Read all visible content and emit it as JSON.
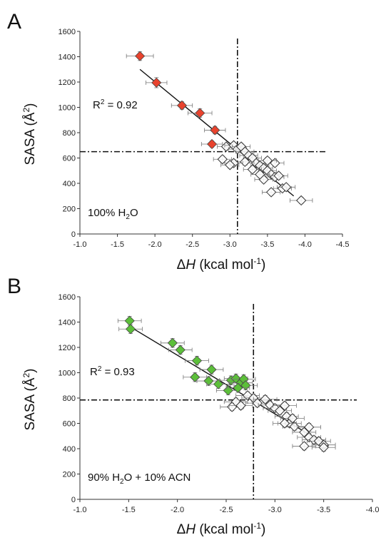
{
  "chart_data": [
    {
      "type": "scatter",
      "panel": "A",
      "xlabel_delta": "Δ",
      "xlabel_var": "H",
      "xlabel_unit_pre": " (kcal mol",
      "xlabel_sup": "-1",
      "xlabel_unit_post": ")",
      "ylabel_pre": "SASA (Å",
      "ylabel_sup": "2",
      "ylabel_post": ")",
      "xlim": [
        -1.0,
        -4.5
      ],
      "ylim": [
        0,
        1600
      ],
      "xticks": [
        "-1.0",
        "-1.5",
        "-2.0",
        "-2.5",
        "-3.0",
        "-3.5",
        "-4.0",
        "-4.5"
      ],
      "yticks": [
        "0",
        "200",
        "400",
        "600",
        "800",
        "1000",
        "1200",
        "1400",
        "1600"
      ],
      "r2_label": "R",
      "r2_sup": "2",
      "r2_value": " = 0.92",
      "condition_pre": "100% H",
      "condition_sub": "2",
      "condition_post": "O",
      "threshold_x": -3.1,
      "threshold_y": 650,
      "fit_line": [
        [
          -1.8,
          1300
        ],
        [
          -3.85,
          300
        ]
      ],
      "highlight_color": "#e8432e",
      "series": [
        {
          "group": "highlighted",
          "points": [
            {
              "x": -1.8,
              "y": 1405,
              "xerr": 0.18,
              "yerr": 35
            },
            {
              "x": -2.02,
              "y": 1195,
              "xerr": 0.14,
              "yerr": 40
            },
            {
              "x": -2.36,
              "y": 1015,
              "xerr": 0.14,
              "yerr": 30
            },
            {
              "x": -2.6,
              "y": 955,
              "xerr": 0.16,
              "yerr": 35
            },
            {
              "x": -2.8,
              "y": 820,
              "xerr": 0.14,
              "yerr": 30
            },
            {
              "x": -2.76,
              "y": 710,
              "xerr": 0.14,
              "yerr": 25
            }
          ]
        },
        {
          "group": "open",
          "points": [
            {
              "x": -2.95,
              "y": 690,
              "xerr": 0.12,
              "yerr": 25
            },
            {
              "x": -3.05,
              "y": 700,
              "xerr": 0.12,
              "yerr": 25
            },
            {
              "x": -3.1,
              "y": 670,
              "xerr": 0.12,
              "yerr": 25
            },
            {
              "x": -3.15,
              "y": 690,
              "xerr": 0.12,
              "yerr": 25
            },
            {
              "x": -3.2,
              "y": 650,
              "xerr": 0.12,
              "yerr": 25
            },
            {
              "x": -3.25,
              "y": 620,
              "xerr": 0.12,
              "yerr": 25
            },
            {
              "x": -3.3,
              "y": 600,
              "xerr": 0.12,
              "yerr": 25
            },
            {
              "x": -3.35,
              "y": 560,
              "xerr": 0.12,
              "yerr": 25
            },
            {
              "x": -3.4,
              "y": 540,
              "xerr": 0.12,
              "yerr": 25
            },
            {
              "x": -3.45,
              "y": 520,
              "xerr": 0.12,
              "yerr": 25
            },
            {
              "x": -3.5,
              "y": 500,
              "xerr": 0.12,
              "yerr": 25
            },
            {
              "x": -3.55,
              "y": 470,
              "xerr": 0.12,
              "yerr": 25
            },
            {
              "x": -3.6,
              "y": 450,
              "xerr": 0.12,
              "yerr": 25
            },
            {
              "x": -3.65,
              "y": 460,
              "xerr": 0.12,
              "yerr": 25
            },
            {
              "x": -3.2,
              "y": 570,
              "xerr": 0.12,
              "yerr": 25
            },
            {
              "x": -3.05,
              "y": 560,
              "xerr": 0.12,
              "yerr": 25
            },
            {
              "x": -2.9,
              "y": 590,
              "xerr": 0.12,
              "yerr": 25
            },
            {
              "x": -3.0,
              "y": 545,
              "xerr": 0.12,
              "yerr": 25
            },
            {
              "x": -3.3,
              "y": 510,
              "xerr": 0.12,
              "yerr": 25
            },
            {
              "x": -3.45,
              "y": 430,
              "xerr": 0.12,
              "yerr": 25
            },
            {
              "x": -3.55,
              "y": 330,
              "xerr": 0.12,
              "yerr": 25
            },
            {
              "x": -3.7,
              "y": 360,
              "xerr": 0.12,
              "yerr": 25
            },
            {
              "x": -3.75,
              "y": 370,
              "xerr": 0.12,
              "yerr": 25
            },
            {
              "x": -3.95,
              "y": 265,
              "xerr": 0.15,
              "yerr": 25
            },
            {
              "x": -3.4,
              "y": 470,
              "xerr": 0.12,
              "yerr": 25
            },
            {
              "x": -3.6,
              "y": 560,
              "xerr": 0.12,
              "yerr": 25
            },
            {
              "x": -3.5,
              "y": 580,
              "xerr": 0.12,
              "yerr": 25
            }
          ]
        }
      ]
    },
    {
      "type": "scatter",
      "panel": "B",
      "xlabel_delta": "Δ",
      "xlabel_var": "H",
      "xlabel_unit_pre": " (kcal mol",
      "xlabel_sup": "-1",
      "xlabel_unit_post": ")",
      "ylabel_pre": "SASA (Å",
      "ylabel_sup": "2",
      "ylabel_post": ")",
      "xlim": [
        -1.0,
        -4.0
      ],
      "ylim": [
        0,
        1600
      ],
      "xticks": [
        "-1.0",
        "-1.5",
        "-2.0",
        "-2.5",
        "-3.0",
        "-3.5",
        "-4.0"
      ],
      "yticks": [
        "0",
        "200",
        "400",
        "600",
        "800",
        "1000",
        "1200",
        "1400",
        "1600"
      ],
      "r2_label": "R",
      "r2_sup": "2",
      "r2_value": " = 0.93",
      "condition_pre": "90% H",
      "condition_sub": "2",
      "condition_post": "O + 10% ACN",
      "threshold_x": -2.78,
      "threshold_y": 785,
      "fit_line": [
        [
          -1.5,
          1370
        ],
        [
          -3.55,
          420
        ]
      ],
      "highlight_color": "#5cbf3a",
      "series": [
        {
          "group": "highlighted",
          "points": [
            {
              "x": -1.51,
              "y": 1410,
              "xerr": 0.12,
              "yerr": 35
            },
            {
              "x": -1.52,
              "y": 1345,
              "xerr": 0.12,
              "yerr": 35
            },
            {
              "x": -1.95,
              "y": 1235,
              "xerr": 0.12,
              "yerr": 35
            },
            {
              "x": -2.03,
              "y": 1180,
              "xerr": 0.12,
              "yerr": 35
            },
            {
              "x": -2.2,
              "y": 1095,
              "xerr": 0.12,
              "yerr": 35
            },
            {
              "x": -2.35,
              "y": 1025,
              "xerr": 0.12,
              "yerr": 35
            },
            {
              "x": -2.18,
              "y": 965,
              "xerr": 0.12,
              "yerr": 35
            },
            {
              "x": -2.32,
              "y": 935,
              "xerr": 0.12,
              "yerr": 35
            },
            {
              "x": -2.42,
              "y": 910,
              "xerr": 0.12,
              "yerr": 35
            },
            {
              "x": -2.52,
              "y": 860,
              "xerr": 0.12,
              "yerr": 35
            },
            {
              "x": -2.55,
              "y": 940,
              "xerr": 0.12,
              "yerr": 35
            },
            {
              "x": -2.6,
              "y": 955,
              "xerr": 0.12,
              "yerr": 35
            },
            {
              "x": -2.65,
              "y": 920,
              "xerr": 0.12,
              "yerr": 35
            },
            {
              "x": -2.68,
              "y": 950,
              "xerr": 0.12,
              "yerr": 35
            },
            {
              "x": -2.7,
              "y": 900,
              "xerr": 0.12,
              "yerr": 35
            },
            {
              "x": -2.62,
              "y": 880,
              "xerr": 0.12,
              "yerr": 35
            }
          ]
        },
        {
          "group": "open",
          "points": [
            {
              "x": -2.72,
              "y": 820,
              "xerr": 0.12,
              "yerr": 30
            },
            {
              "x": -2.78,
              "y": 800,
              "xerr": 0.12,
              "yerr": 30
            },
            {
              "x": -2.6,
              "y": 770,
              "xerr": 0.12,
              "yerr": 30
            },
            {
              "x": -2.56,
              "y": 730,
              "xerr": 0.12,
              "yerr": 30
            },
            {
              "x": -2.65,
              "y": 740,
              "xerr": 0.12,
              "yerr": 30
            },
            {
              "x": -2.82,
              "y": 760,
              "xerr": 0.12,
              "yerr": 30
            },
            {
              "x": -2.9,
              "y": 790,
              "xerr": 0.12,
              "yerr": 30
            },
            {
              "x": -2.95,
              "y": 745,
              "xerr": 0.12,
              "yerr": 30
            },
            {
              "x": -3.0,
              "y": 720,
              "xerr": 0.12,
              "yerr": 30
            },
            {
              "x": -3.05,
              "y": 700,
              "xerr": 0.12,
              "yerr": 30
            },
            {
              "x": -3.1,
              "y": 740,
              "xerr": 0.12,
              "yerr": 30
            },
            {
              "x": -3.12,
              "y": 655,
              "xerr": 0.12,
              "yerr": 30
            },
            {
              "x": -3.15,
              "y": 600,
              "xerr": 0.12,
              "yerr": 30
            },
            {
              "x": -3.2,
              "y": 575,
              "xerr": 0.12,
              "yerr": 30
            },
            {
              "x": -3.18,
              "y": 640,
              "xerr": 0.12,
              "yerr": 30
            },
            {
              "x": -3.3,
              "y": 530,
              "xerr": 0.12,
              "yerr": 30
            },
            {
              "x": -3.35,
              "y": 490,
              "xerr": 0.12,
              "yerr": 30
            },
            {
              "x": -3.4,
              "y": 470,
              "xerr": 0.12,
              "yerr": 30
            },
            {
              "x": -3.45,
              "y": 460,
              "xerr": 0.12,
              "yerr": 30
            },
            {
              "x": -3.5,
              "y": 430,
              "xerr": 0.12,
              "yerr": 30
            },
            {
              "x": -3.5,
              "y": 410,
              "xerr": 0.12,
              "yerr": 30
            },
            {
              "x": -3.3,
              "y": 420,
              "xerr": 0.12,
              "yerr": 30
            },
            {
              "x": -3.35,
              "y": 570,
              "xerr": 0.12,
              "yerr": 30
            },
            {
              "x": -3.1,
              "y": 600,
              "xerr": 0.12,
              "yerr": 30
            }
          ]
        }
      ]
    }
  ]
}
